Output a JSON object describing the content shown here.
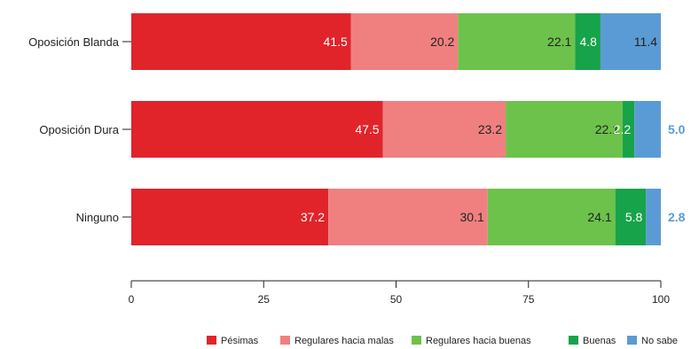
{
  "chart_data": {
    "type": "bar",
    "orientation": "horizontal",
    "stacked": true,
    "title": "",
    "xlabel": "",
    "ylabel": "",
    "xlim": [
      0,
      100
    ],
    "xticks": [
      "0",
      "25",
      "50",
      "75",
      "100"
    ],
    "categories": [
      "Oposición Blanda",
      "Oposición Dura",
      "Ninguno"
    ],
    "series": [
      {
        "name": "Pésimas",
        "color": "#e0242a",
        "values": [
          41.5,
          47.5,
          37.2
        ]
      },
      {
        "name": "Regulares hacia malas",
        "color": "#f08080",
        "values": [
          20.2,
          23.2,
          30.1
        ]
      },
      {
        "name": "Regulares hacia buenas",
        "color": "#6cc24a",
        "values": [
          22.1,
          22.1,
          24.1
        ]
      },
      {
        "name": "Buenas",
        "color": "#17a34a",
        "values": [
          4.8,
          2.2,
          5.8
        ]
      },
      {
        "name": "No sabe",
        "color": "#5b9bd5",
        "values": [
          11.4,
          5.0,
          2.8
        ]
      }
    ],
    "labels": [
      [
        "41.5",
        "20.2",
        "22.1",
        "4.8",
        "11.4"
      ],
      [
        "47.5",
        "23.2",
        "22.1",
        "2.2",
        "5.0"
      ],
      [
        "37.2",
        "30.1",
        "24.1",
        "5.8",
        "2.8"
      ]
    ],
    "grid": false,
    "legend_position": "bottom-right"
  }
}
